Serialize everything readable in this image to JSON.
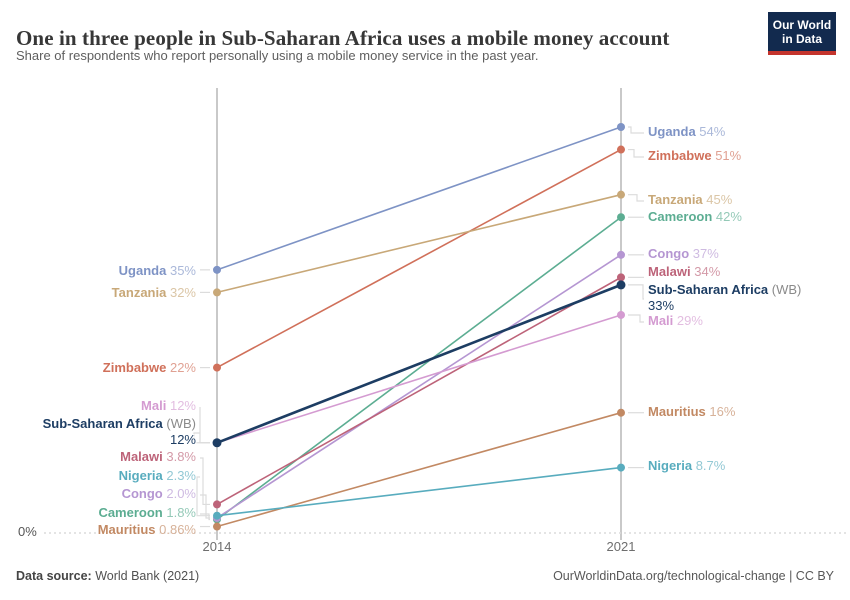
{
  "header": {
    "title": "One in three people in Sub-Saharan Africa uses a mobile money account",
    "subtitle": "Share of respondents who report personally using a mobile money service in the past year."
  },
  "logo": {
    "line1": "Our World",
    "line2": "in Data",
    "bg_color": "#122a4e",
    "accent_color": "#c4342d"
  },
  "footer": {
    "datasource_label": "Data source:",
    "datasource_value": " World Bank (2021)",
    "credit": "OurWorldinData.org/technological-change | CC BY"
  },
  "chart_data": {
    "type": "line",
    "subtype": "slope-chart",
    "title": "One in three people in Sub-Saharan Africa uses a mobile money account",
    "xlabel": "",
    "ylabel": "",
    "x_labels": [
      "2014",
      "2021"
    ],
    "y_axis": {
      "label": "0%",
      "min": 0,
      "max": 59,
      "unit": "%"
    },
    "grid": "dotted-zero-baseline-only",
    "legend_position": "direct-labels-both-sides",
    "series": [
      {
        "name": "Uganda",
        "color": "#7e93c5",
        "values": [
          35,
          54
        ],
        "value_labels": [
          "35%",
          "54%"
        ],
        "label_y": [
          272,
          133
        ]
      },
      {
        "name": "Zimbabwe",
        "color": "#d0705a",
        "values": [
          22,
          51
        ],
        "value_labels": [
          "22%",
          "51%"
        ],
        "label_y": [
          369,
          157
        ]
      },
      {
        "name": "Tanzania",
        "color": "#c8a878",
        "values": [
          32,
          45
        ],
        "value_labels": [
          "32%",
          "45%"
        ],
        "label_y": [
          294,
          201
        ]
      },
      {
        "name": "Cameroon",
        "color": "#5cad92",
        "values": [
          1.8,
          42
        ],
        "value_labels": [
          "1.8%",
          "42%"
        ],
        "label_y": [
          514,
          218
        ]
      },
      {
        "name": "Congo",
        "color": "#b596d2",
        "values": [
          2.0,
          37
        ],
        "value_labels": [
          "2.0%",
          "37%"
        ],
        "label_y": [
          495,
          255
        ]
      },
      {
        "name": "Malawi",
        "color": "#bd6379",
        "values": [
          3.8,
          34
        ],
        "value_labels": [
          "3.8%",
          "34%"
        ],
        "label_y": [
          458,
          273
        ]
      },
      {
        "name": "Mali",
        "color": "#d49bd1",
        "values": [
          12,
          29
        ],
        "value_labels": [
          "12%",
          "29%"
        ],
        "label_y": [
          407,
          322
        ]
      },
      {
        "name": "Mauritius",
        "color": "#c28963",
        "values": [
          0.86,
          16
        ],
        "value_labels": [
          "0.86%",
          "16%"
        ],
        "label_y": [
          531,
          413
        ]
      },
      {
        "name": "Nigeria",
        "color": "#58acbe",
        "values": [
          2.3,
          8.7
        ],
        "value_labels": [
          "2.3%",
          "8.7%"
        ],
        "label_y": [
          477,
          467
        ]
      },
      {
        "name": "Sub-Saharan Africa",
        "suffix": "(WB)",
        "bold": true,
        "color": "#1d3d63",
        "values": [
          12,
          33
        ],
        "value_labels": [
          "12%",
          "33%"
        ],
        "label_y": [
          433,
          299
        ]
      }
    ]
  }
}
